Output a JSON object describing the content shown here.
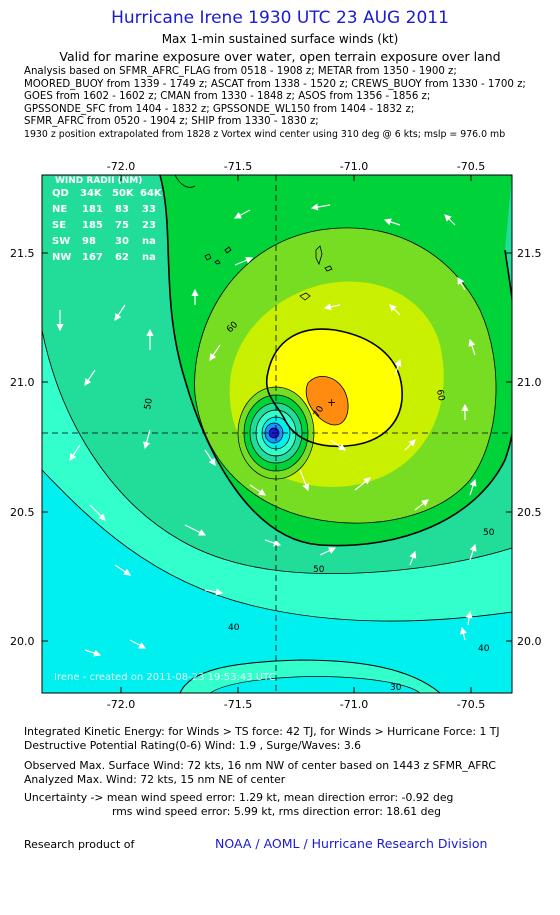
{
  "header": {
    "title": "Hurricane Irene 1930 UTC 23 AUG 2011",
    "subtitle1": "Max 1-min sustained surface winds (kt)",
    "subtitle2": "Valid for marine exposure over water, open terrain exposure over land"
  },
  "analysis_lines": [
    "Analysis based on SFMR_AFRC_FLAG from 0518 - 1908 z; METAR from 1350 - 1900 z;",
    "MOORED_BUOY from 1339 - 1749 z; ASCAT from 1338 - 1520 z; CREWS_BUOY from 1330 - 1700 z;",
    "GOES from 1602 - 1602 z; CMAN from 1330 - 1848 z; ASOS from 1356 - 1856 z;",
    "GPSSONDE_SFC from 1404 - 1832 z; GPSSONDE_WL150 from 1404 - 1832 z;",
    "SFMR_AFRC from 0520 - 1904 z; SHIP from 1330 - 1830 z;",
    "1930 z position extrapolated from 1828 z Vortex wind center using 310 deg @ 6 kts; mslp = 976.0 mb"
  ],
  "map": {
    "x_ticks": [
      "-72.0",
      "-71.5",
      "-71.0",
      "-70.5"
    ],
    "y_ticks": [
      "21.5",
      "21.0",
      "20.5",
      "20.0"
    ],
    "contour_labels": [
      "50",
      "60",
      "70",
      "40",
      "50",
      "60",
      "40",
      "50",
      "30"
    ],
    "watermark": "Irene - created on 2011-08-23 19:53:43 UTC",
    "wind_radii": {
      "header": [
        "QD",
        "34K",
        "50K",
        "64K"
      ],
      "title": "WIND RADII (NM)",
      "rows": [
        [
          "NE",
          "181",
          "83",
          "33"
        ],
        [
          "SE",
          "185",
          "75",
          "23"
        ],
        [
          "SW",
          "98",
          "30",
          "na"
        ],
        [
          "NW",
          "167",
          "62",
          "na"
        ]
      ]
    },
    "colors": {
      "cyan": "#00f0f0",
      "aqua": "#33ffcc",
      "aquagreen": "#22dd99",
      "green": "#00d23a",
      "lightgreen": "#77dd22",
      "yellowgreen": "#c8f000",
      "yellow": "#ffff00",
      "orange": "#ff8c10",
      "blue": "#1a1ad6"
    }
  },
  "stats": {
    "ike": "Integrated Kinetic Energy:  for Winds > TS force: 42 TJ,  for Winds > Hurricane Force: 1 TJ",
    "dpr": "Destructive Potential Rating(0-6)   Wind: 1.9 , Surge/Waves: 3.6",
    "obs_max": "Observed Max. Surface Wind: 72 kts, 16 nm NW of center based on 1443 z SFMR_AFRC",
    "analyzed_max": "Analyzed Max. Wind: 72 kts, 15 nm NE of center",
    "unc1": "Uncertainty -> mean wind speed error: 1.29 kt,   mean direction error:  -0.92 deg",
    "unc2": "rms wind speed error: 5.99 kt,   rms direction error: 18.61 deg"
  },
  "footer": {
    "research": "Research product of",
    "org": "NOAA / AOML / Hurricane Research Division"
  }
}
